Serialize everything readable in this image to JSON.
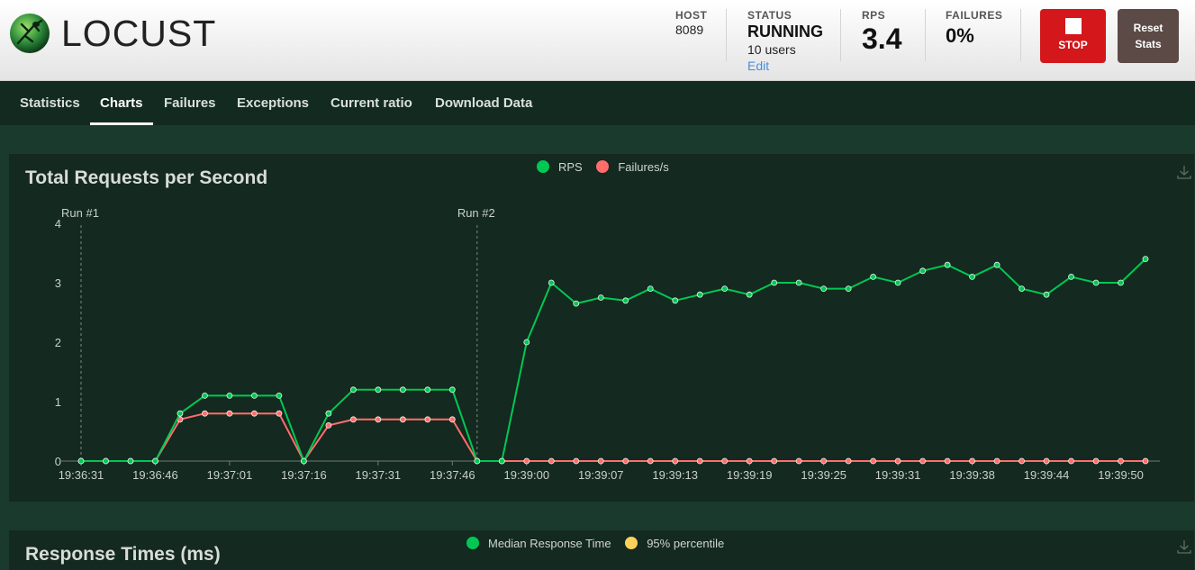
{
  "app": {
    "logo_text": "LOCUST"
  },
  "header": {
    "host": {
      "label": "HOST",
      "value": "8089"
    },
    "status": {
      "label": "STATUS",
      "value": "RUNNING",
      "users": "10 users",
      "edit": "Edit"
    },
    "rps": {
      "label": "RPS",
      "value": "3.4"
    },
    "failures": {
      "label": "FAILURES",
      "value": "0%"
    },
    "stop_label": "STOP",
    "reset_label_line1": "Reset",
    "reset_label_line2": "Stats"
  },
  "nav": {
    "tabs": [
      {
        "label": "Statistics"
      },
      {
        "label": "Charts"
      },
      {
        "label": "Failures"
      },
      {
        "label": "Exceptions"
      },
      {
        "label": "Current ratio"
      },
      {
        "label": "Download Data"
      }
    ],
    "active": "Charts"
  },
  "panels": {
    "rps_title": "Total Requests per Second",
    "rps_legend": [
      "RPS",
      "Failures/s"
    ],
    "rt_title": "Response Times (ms)",
    "rt_legend": [
      "Median Response Time",
      "95% percentile"
    ]
  },
  "colors": {
    "rps": "#00c853",
    "failures": "#ff6d6d",
    "median": "#00c853",
    "p95": "#ffd15c",
    "stop": "#d3171b"
  },
  "chart_data": {
    "type": "line",
    "title": "Total Requests per Second",
    "ylim": [
      0,
      4
    ],
    "yticks": [
      0,
      1,
      2,
      3,
      4
    ],
    "x_tick_labels": [
      "19:36:31",
      "19:36:46",
      "19:37:01",
      "19:37:16",
      "19:37:31",
      "19:37:46",
      "19:39:00",
      "19:39:07",
      "19:39:13",
      "19:39:19",
      "19:39:25",
      "19:39:31",
      "19:39:38",
      "19:39:44",
      "19:39:50"
    ],
    "x_tick_index": [
      0,
      3,
      6,
      9,
      12,
      15,
      18,
      21,
      24,
      27,
      30,
      33,
      36,
      39,
      42
    ],
    "markers": [
      {
        "label": "Run #1",
        "index": 0
      },
      {
        "label": "Run #2",
        "index": 16
      }
    ],
    "point_count": 44,
    "series": [
      {
        "name": "RPS",
        "values": [
          0,
          0,
          0,
          0,
          0.8,
          1.1,
          1.1,
          1.1,
          1.1,
          0,
          0.8,
          1.2,
          1.2,
          1.2,
          1.2,
          1.2,
          0,
          0,
          2.0,
          3.0,
          2.65,
          2.75,
          2.7,
          2.9,
          2.7,
          2.8,
          2.9,
          2.8,
          3.0,
          3.0,
          2.9,
          2.9,
          3.1,
          3.0,
          3.2,
          3.3,
          3.1,
          3.3,
          2.9,
          2.8,
          3.1,
          3.0,
          3.0,
          3.4
        ]
      },
      {
        "name": "Failures/s",
        "values": [
          0,
          0,
          0,
          0,
          0.7,
          0.8,
          0.8,
          0.8,
          0.8,
          0,
          0.6,
          0.7,
          0.7,
          0.7,
          0.7,
          0.7,
          0,
          0,
          0,
          0,
          0,
          0,
          0,
          0,
          0,
          0,
          0,
          0,
          0,
          0,
          0,
          0,
          0,
          0,
          0,
          0,
          0,
          0,
          0,
          0,
          0,
          0,
          0,
          0
        ]
      }
    ],
    "grid": false,
    "legend_position": "top-center"
  }
}
